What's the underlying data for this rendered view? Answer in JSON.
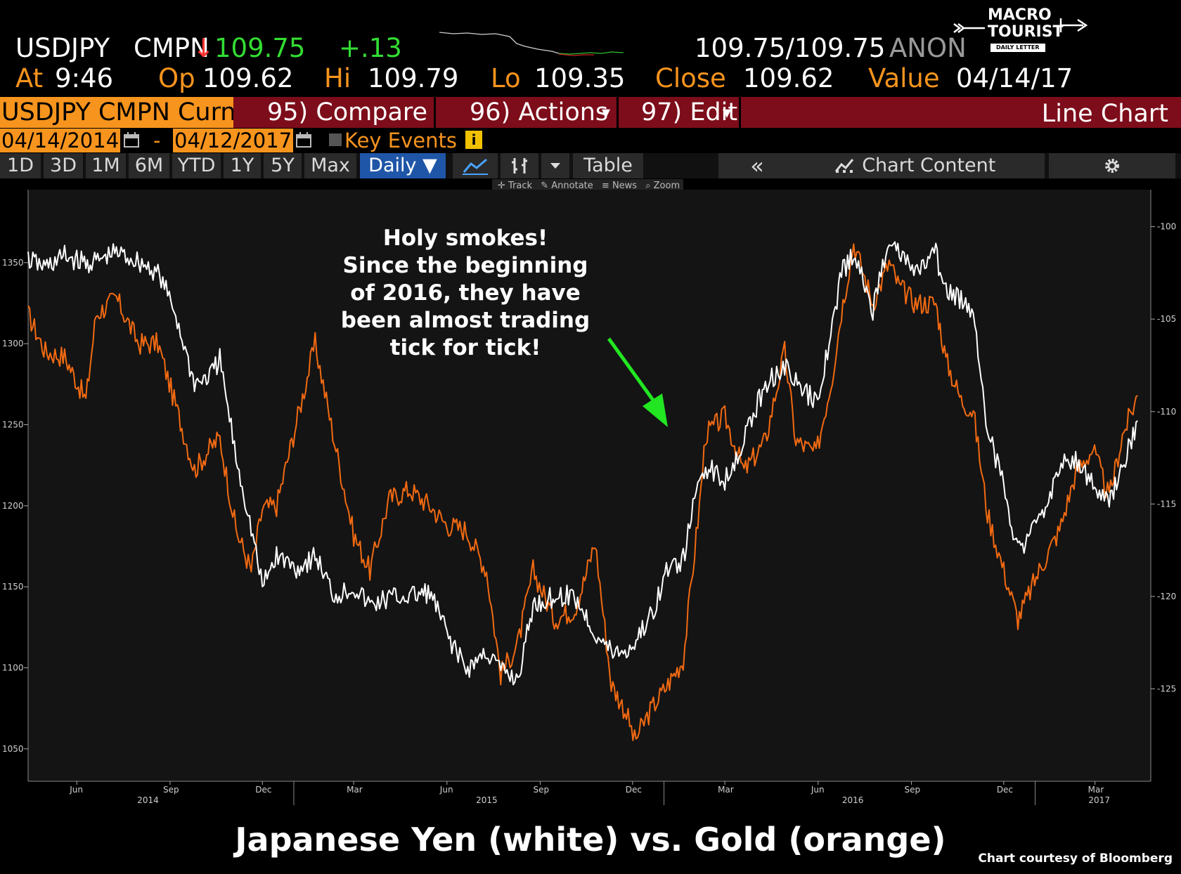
{
  "quote": {
    "ticker": "USDJPY",
    "source": "CMPN",
    "arrow": "↓",
    "last": "109.75",
    "change": "+.13",
    "bid_ask": "109.75/109.75",
    "status": "ANON",
    "at_label": "At",
    "at_value": "9:46",
    "op_label": "Op",
    "op_value": "109.62",
    "hi_label": "Hi",
    "hi_value": "109.79",
    "lo_label": "Lo",
    "lo_value": "109.35",
    "close_label": "Close",
    "close_value": "109.62",
    "value_label": "Value",
    "value_value": "04/14/17"
  },
  "logo": {
    "line1": "MACRO",
    "line2": "TOURIST",
    "line3": "DAILY LETTER"
  },
  "toolbar": {
    "security": "USDJPY CMPN Curnc",
    "compare": "95) Compare",
    "actions": "96) Actions",
    "edit": "97) Edit",
    "chart_type": "Line Chart",
    "caret": "▾"
  },
  "dates": {
    "start": "04/14/2014",
    "dash": "-",
    "end": "04/12/2017",
    "key_events": "Key Events",
    "info": "i"
  },
  "ranges": {
    "items": [
      "1D",
      "3D",
      "1M",
      "6M",
      "YTD",
      "1Y",
      "5Y",
      "Max"
    ],
    "frequency": "Daily ▼",
    "table": "Table",
    "collapse": "«",
    "chart_content": "Chart Content"
  },
  "chart_tools": {
    "track": "Track",
    "annotate": "Annotate",
    "news": "News",
    "zoom": "Zoom"
  },
  "colors": {
    "gold": "#f26a12",
    "yen": "#ffffff",
    "bg": "#141414",
    "arrow": "#22e622",
    "toolbar_red": "#7d0d1a",
    "accent_orange": "#f7941d"
  },
  "annotation": {
    "lines": [
      "Holy smokes!",
      "Since the beginning",
      "of 2016, they have",
      "been almost trading",
      "tick for tick!"
    ]
  },
  "caption": "Japanese Yen (white) vs. Gold (orange)",
  "credit": "Chart courtesy of Bloomberg",
  "chart_data": {
    "type": "line",
    "x_month_ticks": [
      "Jun",
      "Sep",
      "Dec",
      "Mar",
      "Jun",
      "Sep",
      "Dec",
      "Mar",
      "Jun",
      "Sep",
      "Dec",
      "Mar"
    ],
    "x_year_labels": [
      "2014",
      "2015",
      "2016",
      "2017"
    ],
    "left_axis": {
      "ticks": [
        1350,
        1300,
        1250,
        1200,
        1150,
        1100,
        1050
      ],
      "range": [
        1030,
        1395
      ]
    },
    "right_axis": {
      "ticks": [
        "100",
        "105",
        "110",
        "115",
        "120",
        "125"
      ],
      "range": [
        98,
        130
      ],
      "inverted": true
    },
    "series": [
      {
        "axis": "left",
        "color": "#f26a12",
        "x": [
          "2014-04-14",
          "2014-05-01",
          "2014-05-20",
          "2014-06-10",
          "2014-06-20",
          "2014-07-10",
          "2014-08-01",
          "2014-08-20",
          "2014-09-05",
          "2014-09-25",
          "2014-10-10",
          "2014-10-20",
          "2014-11-05",
          "2014-11-20",
          "2014-12-01",
          "2014-12-15",
          "2015-01-05",
          "2015-01-22",
          "2015-02-10",
          "2015-03-01",
          "2015-03-17",
          "2015-04-05",
          "2015-04-25",
          "2015-05-15",
          "2015-06-01",
          "2015-06-20",
          "2015-07-10",
          "2015-07-24",
          "2015-08-10",
          "2015-08-25",
          "2015-09-15",
          "2015-10-05",
          "2015-10-15",
          "2015-10-25",
          "2015-11-10",
          "2015-11-25",
          "2015-12-03",
          "2015-12-20",
          "2016-01-05",
          "2016-01-20",
          "2016-02-05",
          "2016-02-11",
          "2016-03-01",
          "2016-03-20",
          "2016-04-10",
          "2016-04-29",
          "2016-05-10",
          "2016-05-30",
          "2016-06-15",
          "2016-06-24",
          "2016-07-06",
          "2016-07-25",
          "2016-08-10",
          "2016-08-20",
          "2016-09-05",
          "2016-09-25",
          "2016-10-05",
          "2016-10-20",
          "2016-11-01",
          "2016-11-15",
          "2016-12-01",
          "2016-12-15",
          "2017-01-05",
          "2017-01-25",
          "2017-02-10",
          "2017-02-27",
          "2017-03-15",
          "2017-03-28",
          "2017-04-12"
        ],
        "y": [
          1318,
          1295,
          1292,
          1265,
          1318,
          1328,
          1300,
          1300,
          1265,
          1222,
          1235,
          1242,
          1185,
          1160,
          1198,
          1200,
          1255,
          1300,
          1240,
          1182,
          1160,
          1204,
          1210,
          1200,
          1188,
          1185,
          1160,
          1096,
          1115,
          1160,
          1130,
          1136,
          1155,
          1178,
          1090,
          1072,
          1055,
          1075,
          1090,
          1105,
          1200,
          1244,
          1255,
          1221,
          1240,
          1295,
          1240,
          1232,
          1280,
          1320,
          1362,
          1325,
          1350,
          1335,
          1325,
          1325,
          1290,
          1265,
          1258,
          1195,
          1160,
          1130,
          1160,
          1185,
          1220,
          1235,
          1205,
          1243,
          1268
        ]
      },
      {
        "axis": "right",
        "color": "#ffffff",
        "x": [
          "2014-04-14",
          "2014-05-01",
          "2014-05-20",
          "2014-06-10",
          "2014-06-20",
          "2014-07-10",
          "2014-08-01",
          "2014-08-20",
          "2014-09-05",
          "2014-09-25",
          "2014-10-10",
          "2014-10-20",
          "2014-11-05",
          "2014-11-20",
          "2014-12-01",
          "2014-12-15",
          "2015-01-05",
          "2015-01-22",
          "2015-02-10",
          "2015-03-01",
          "2015-03-17",
          "2015-04-05",
          "2015-04-25",
          "2015-05-15",
          "2015-06-01",
          "2015-06-20",
          "2015-07-10",
          "2015-07-24",
          "2015-08-10",
          "2015-08-25",
          "2015-09-15",
          "2015-10-05",
          "2015-10-15",
          "2015-10-25",
          "2015-11-10",
          "2015-11-25",
          "2015-12-03",
          "2015-12-20",
          "2016-01-05",
          "2016-01-20",
          "2016-02-05",
          "2016-02-11",
          "2016-03-01",
          "2016-03-20",
          "2016-04-10",
          "2016-04-29",
          "2016-05-10",
          "2016-05-30",
          "2016-06-15",
          "2016-06-24",
          "2016-07-06",
          "2016-07-25",
          "2016-08-10",
          "2016-08-20",
          "2016-09-05",
          "2016-09-25",
          "2016-10-05",
          "2016-10-20",
          "2016-11-01",
          "2016-11-15",
          "2016-12-01",
          "2016-12-15",
          "2017-01-05",
          "2017-01-25",
          "2017-02-10",
          "2017-02-27",
          "2017-03-15",
          "2017-03-28",
          "2017-04-12"
        ],
        "y": [
          101.8,
          102.2,
          101.6,
          102.0,
          101.9,
          101.4,
          101.9,
          102.5,
          104.5,
          108.5,
          108.1,
          107.2,
          112.5,
          116.3,
          119.5,
          117.8,
          118.5,
          117.8,
          120.0,
          119.5,
          120.5,
          120.1,
          120.0,
          119.8,
          122.0,
          124.0,
          123.0,
          124.0,
          124.5,
          120.5,
          120.0,
          120.0,
          121.0,
          122.0,
          123.0,
          123.0,
          122.5,
          121.0,
          118.5,
          118.0,
          113.5,
          113.0,
          113.7,
          111.5,
          108.5,
          107.5,
          108.5,
          109.5,
          105.5,
          102.5,
          101.5,
          104.5,
          100.5,
          101.5,
          102.5,
          101.5,
          103.5,
          104.0,
          104.5,
          111.0,
          114.0,
          117.5,
          116.0,
          113.0,
          112.5,
          114.0,
          115.0,
          113.0,
          110.5
        ]
      }
    ]
  }
}
